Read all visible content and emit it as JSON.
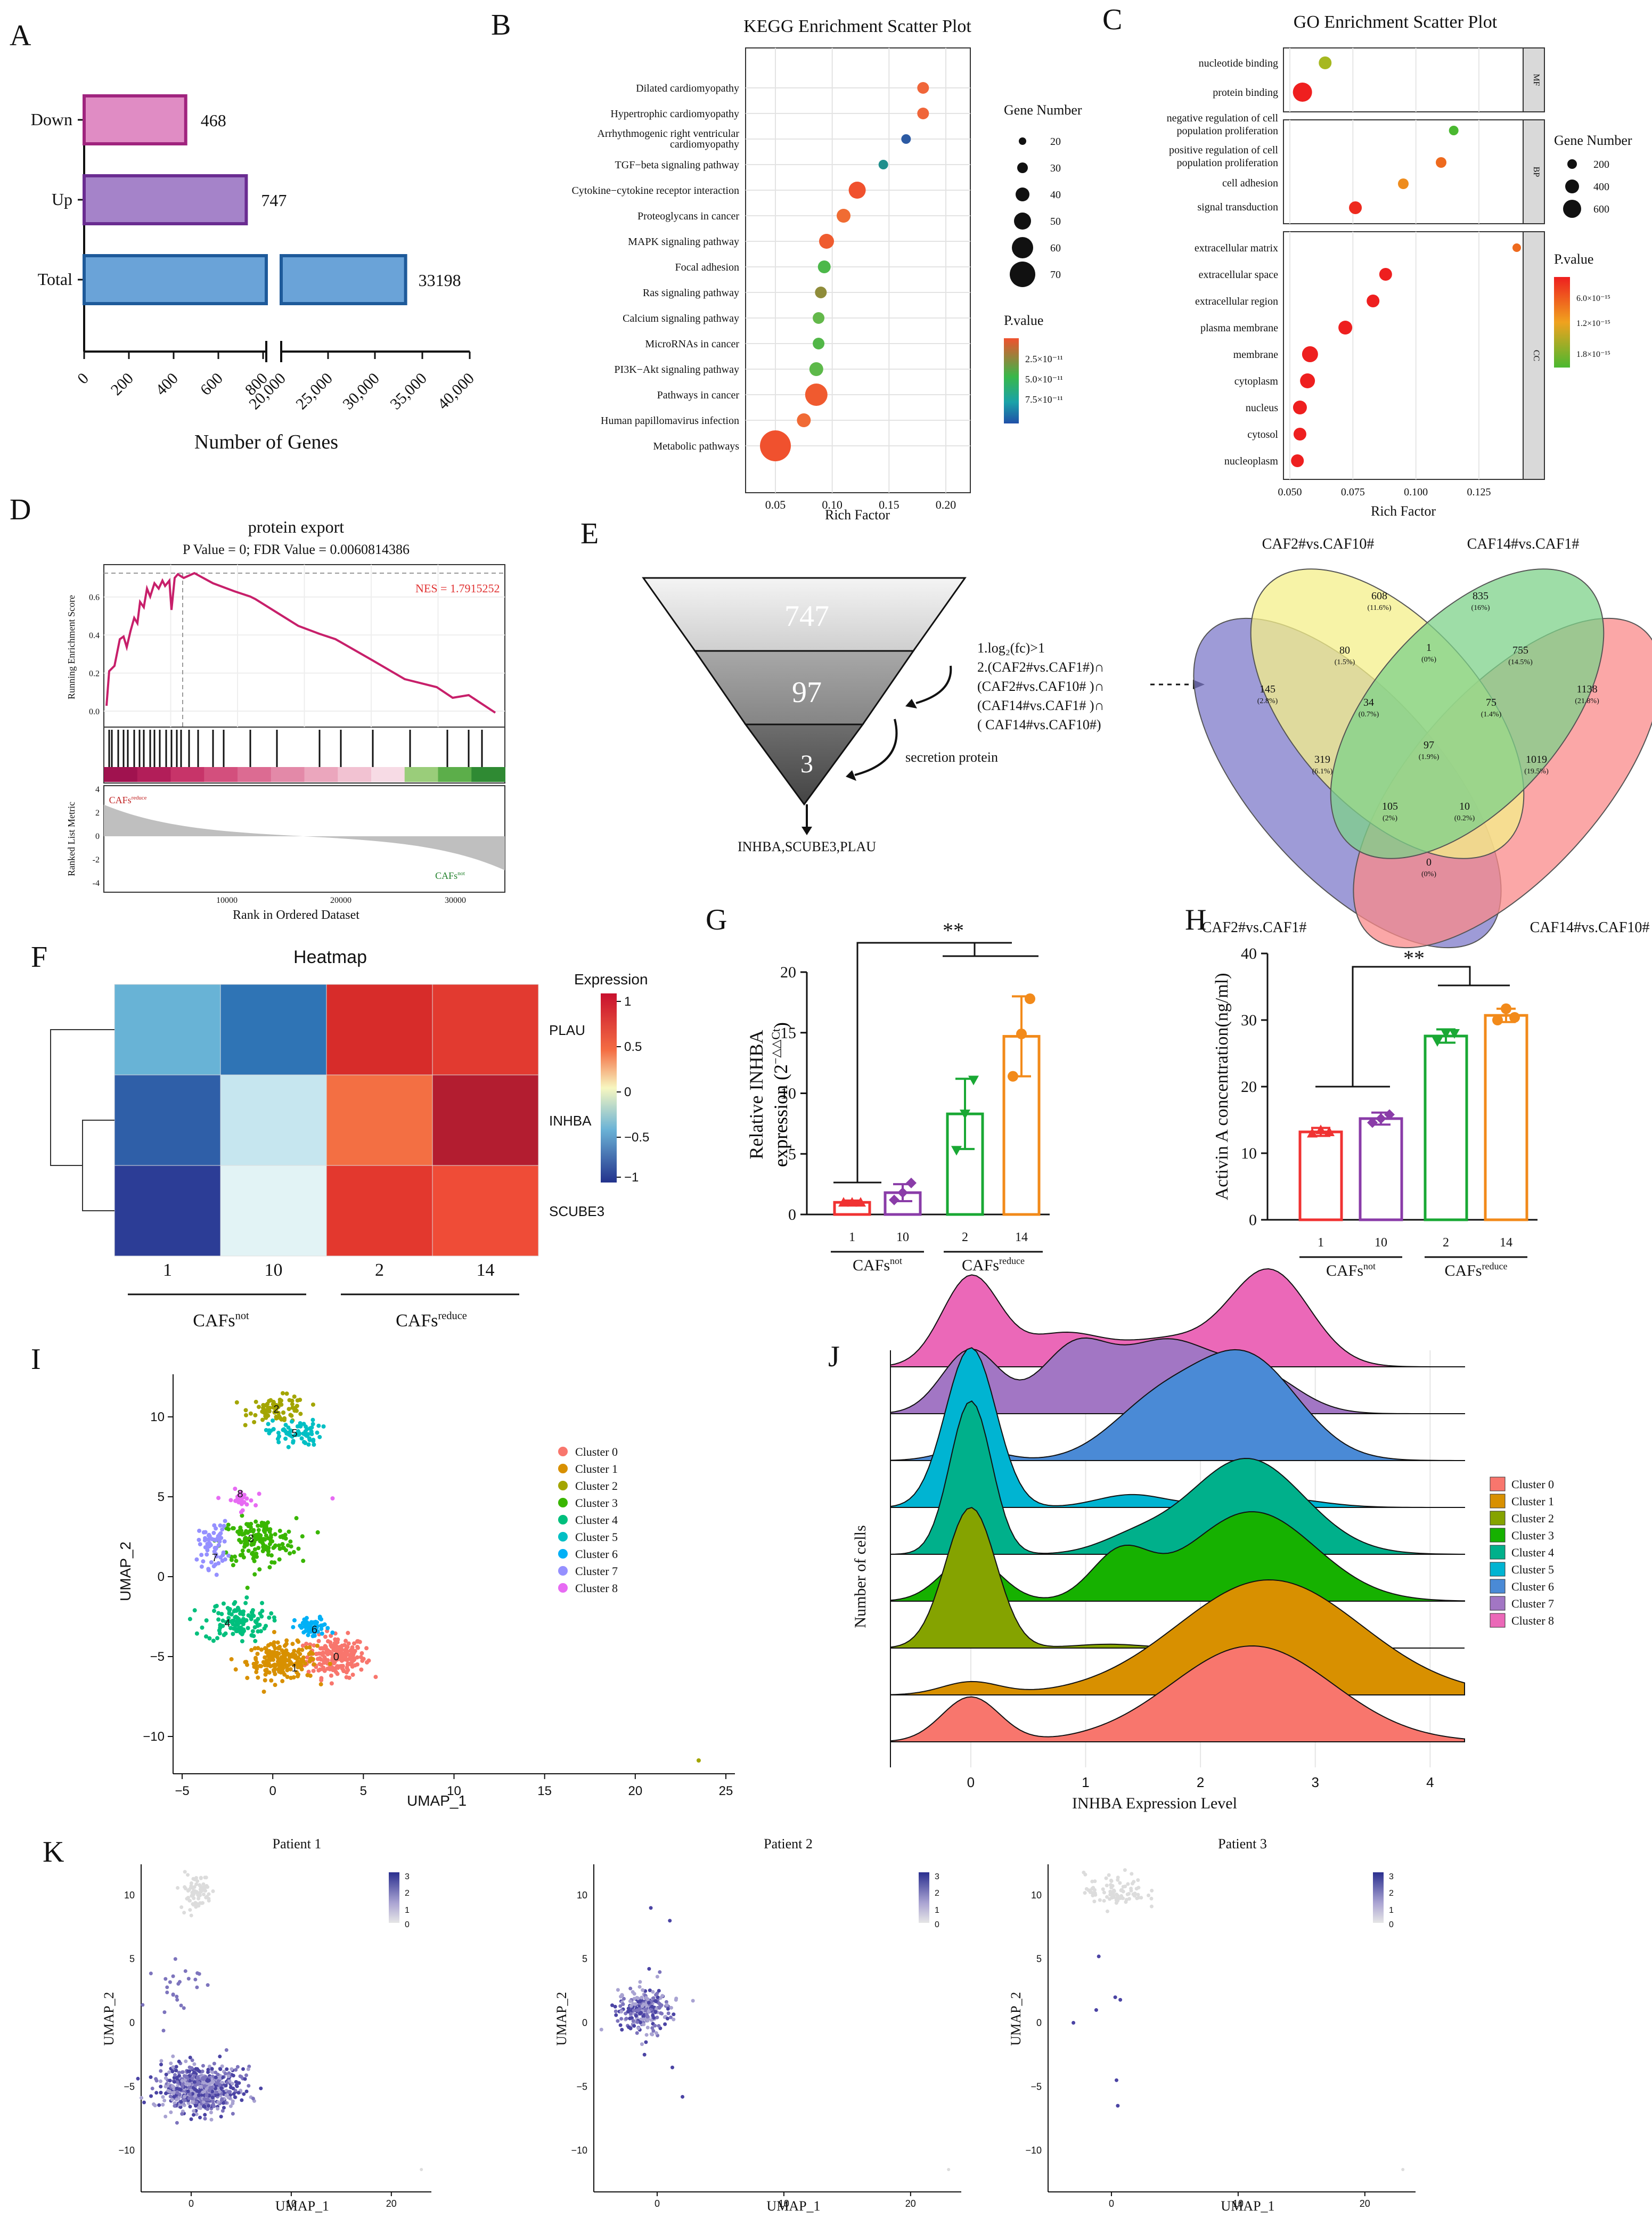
{
  "panel_labels": [
    "A",
    "B",
    "C",
    "D",
    "E",
    "F",
    "G",
    "H",
    "I",
    "J",
    "K"
  ],
  "A": {
    "categories": [
      "Down",
      "Up",
      "Total"
    ],
    "values": [
      468,
      747,
      33198
    ],
    "value_labels": [
      "468",
      "747",
      "33198"
    ],
    "colors": [
      "#e08cc4",
      "#a583c9",
      "#6aa3d8"
    ],
    "edge_colors": [
      "#a0247e",
      "#6a2c91",
      "#1e5a9a"
    ],
    "ticks": [
      "0",
      "200",
      "400",
      "600",
      "800",
      "20,000",
      "25,000",
      "30,000",
      "35,000",
      "40,000"
    ],
    "xlabel": "Number of Genes"
  },
  "B": {
    "title": "KEGG Enrichment Scatter Plot",
    "xlabel": "Rich Factor",
    "xticks": [
      "0.05",
      "0.10",
      "0.15",
      "0.20"
    ],
    "terms": [
      "Dilated cardiomyopathy",
      "Hypertrophic cardiomyopathy",
      "Arrhythmogenic right ventricular",
      "cardiomyopathy",
      "TGF−beta signaling pathway",
      "Cytokine−cytokine receptor interaction",
      "Proteoglycans in cancer",
      "MAPK signaling pathway",
      "Focal adhesion",
      "Ras signaling pathway",
      "Calcium signaling pathway",
      "MicroRNAs in cancer",
      "PI3K−Akt signaling pathway",
      "Pathways in cancer",
      "Human papillomavirus infection",
      "Metabolic pathways"
    ],
    "legend_size_title": "Gene Number",
    "legend_sizes": [
      "20",
      "30",
      "40",
      "50",
      "60",
      "70"
    ],
    "legend_color_title": "P.value",
    "legend_colors": [
      "2.5×10⁻¹¹",
      "5.0×10⁻¹¹",
      "7.5×10⁻¹¹"
    ]
  },
  "C": {
    "title": "GO Enrichment Scatter Plot",
    "xlabel": "Rich Factor",
    "xticks": [
      "0.050",
      "0.075",
      "0.100",
      "0.125"
    ],
    "terms_mf": [
      "nucleotide binding",
      "protein binding"
    ],
    "terms_bp": [
      "negative regulation of cell",
      "population proliferation",
      "positive regulation of cell",
      "population proliferation",
      "cell adhesion",
      "signal transduction"
    ],
    "terms_cc": [
      "extracellular matrix",
      "extracellular space",
      "extracellular region",
      "plasma membrane",
      "membrane",
      "cytoplasm",
      "nucleus",
      "cytosol",
      "nucleoplasm"
    ],
    "strips": [
      "MF",
      "BP",
      "CC"
    ],
    "legend_size_title": "Gene Number",
    "legend_sizes": [
      "200",
      "400",
      "600"
    ],
    "legend_color_title": "P.value",
    "legend_colors": [
      "6.0×10⁻¹⁵",
      "1.2×10⁻¹⁵",
      "1.8×10⁻¹⁵"
    ]
  },
  "D": {
    "title": "protein export",
    "subtitle": "P Value = 0; FDR Value = 0.0060814386",
    "nes": "NES = 1.7915252",
    "ylabel_top": "Running Enrichment Score",
    "yticks_top": [
      "0.6",
      "0.4",
      "0.2",
      "0.0"
    ],
    "ylabel_bottom": "Ranked List Metric",
    "yticks_bottom": [
      "4",
      "2",
      "0",
      "-2",
      "-4"
    ],
    "label_reduce": "CAFs",
    "label_reduce_sup": "reduce",
    "label_not": "CAFs",
    "label_not_sup": "not",
    "xticks": [
      "10000",
      "20000",
      "30000"
    ],
    "xlabel": "Rank in Ordered Dataset"
  },
  "E": {
    "funnel": [
      "747",
      "97",
      "3"
    ],
    "criteria": [
      "1.log₂(fc)>1",
      "2.(CAF2#vs.CAF1#)∩",
      "(CAF2#vs.CAF10# )∩",
      "(CAF14#vs.CAF1# )∩",
      "( CAF14#vs.CAF10#)"
    ],
    "secretion": "secretion protein",
    "genes": "INHBA,SCUBE3,PLAU",
    "venn_labels": [
      "CAF2#vs.CAF10#",
      "CAF14#vs.CAF1#",
      "CAF2#vs.CAF1#",
      "CAF14#vs.CAF10#"
    ],
    "venn_regions": [
      {
        "n": "608",
        "p": "(11.6%)"
      },
      {
        "n": "835",
        "p": "(16%)"
      },
      {
        "n": "145",
        "p": "(2.8%)"
      },
      {
        "n": "1138",
        "p": "(21.8%)"
      },
      {
        "n": "80",
        "p": "(1.5%)"
      },
      {
        "n": "1",
        "p": "(0%)"
      },
      {
        "n": "755",
        "p": "(14.5%)"
      },
      {
        "n": "34",
        "p": "(0.7%)"
      },
      {
        "n": "75",
        "p": "(1.4%)"
      },
      {
        "n": "97",
        "p": "(1.9%)"
      },
      {
        "n": "319",
        "p": "(6.1%)"
      },
      {
        "n": "1019",
        "p": "(19.5%)"
      },
      {
        "n": "105",
        "p": "(2%)"
      },
      {
        "n": "10",
        "p": "(0.2%)"
      },
      {
        "n": "0",
        "p": "(0%)"
      }
    ]
  },
  "F": {
    "title": "Heatmap",
    "rows": [
      "PLAU",
      "INHBA",
      "SCUBE3"
    ],
    "cols": [
      "1",
      "10",
      "2",
      "14"
    ],
    "values": [
      [
        -0.55,
        -0.85,
        1.0,
        0.95
      ],
      [
        -0.9,
        -0.3,
        0.45,
        1.1
      ],
      [
        -1.05,
        -0.15,
        0.95,
        0.85
      ]
    ],
    "legend_title": "Expression",
    "legend_ticks": [
      "1",
      "0.5",
      "0",
      "−0.5",
      "−1"
    ],
    "group_not": "CAFs",
    "group_not_sup": "not",
    "group_reduce": "CAFs",
    "group_reduce_sup": "reduce"
  },
  "G": {
    "ylabel": "Relative INHBA",
    "ylabel2": "expression (2",
    "ylabel2_sup": "−△△Ct",
    "yticks": [
      "0",
      "5",
      "10",
      "15",
      "20"
    ],
    "ylim": [
      0,
      20
    ],
    "categories": [
      "1",
      "10",
      "2",
      "14"
    ],
    "values": [
      1.0,
      1.8,
      8.3,
      14.7
    ],
    "errors": [
      0.15,
      0.7,
      2.9,
      3.3
    ],
    "points": [
      [
        1.0,
        1.0,
        1.0
      ],
      [
        1.2,
        1.8,
        2.6
      ],
      [
        5.3,
        8.3,
        11.1
      ],
      [
        11.4,
        14.9,
        17.8
      ]
    ],
    "colors": [
      "#f03232",
      "#8a3ca8",
      "#19a834",
      "#f28a1a"
    ],
    "sig": "**",
    "group_not": "CAFs",
    "group_not_sup": "not",
    "group_reduce": "CAFs",
    "group_reduce_sup": "reduce"
  },
  "H": {
    "ylabel": "Activin A concentration(ng/ml)",
    "yticks": [
      "0",
      "10",
      "20",
      "30",
      "40"
    ],
    "ylim": [
      0,
      40
    ],
    "categories": [
      "1",
      "10",
      "2",
      "14"
    ],
    "values": [
      13.2,
      15.2,
      27.6,
      30.7
    ],
    "errors": [
      0.6,
      0.9,
      1.0,
      1.0
    ],
    "points": [
      [
        13.0,
        13.5,
        13.2
      ],
      [
        14.6,
        15.2,
        15.8
      ],
      [
        26.8,
        28.0,
        28.0
      ],
      [
        30.0,
        31.7,
        30.4
      ]
    ],
    "colors": [
      "#f03232",
      "#8a3ca8",
      "#19a834",
      "#f28a1a"
    ],
    "sig": "**",
    "group_not": "CAFs",
    "group_not_sup": "not",
    "group_reduce": "CAFs",
    "group_reduce_sup": "reduce"
  },
  "I": {
    "xlabel": "UMAP_1",
    "ylabel": "UMAP_2",
    "xticks": [
      "−5",
      "0",
      "5",
      "10",
      "15",
      "20",
      "25"
    ],
    "yticks": [
      "10",
      "5",
      "0",
      "−5",
      "−10"
    ],
    "clusters": [
      "Cluster 0",
      "Cluster 1",
      "Cluster 2",
      "Cluster 3",
      "Cluster 4",
      "Cluster 5",
      "Cluster 6",
      "Cluster 7",
      "Cluster 8"
    ],
    "colors": [
      "#f8766d",
      "#d89000",
      "#a3a500",
      "#39b600",
      "#00bf7d",
      "#00bfc4",
      "#00b0f6",
      "#9590ff",
      "#e76bf3"
    ],
    "cluster_numbers": [
      "0",
      "1",
      "2",
      "3",
      "4",
      "5",
      "6",
      "7",
      "8"
    ]
  },
  "J": {
    "xlabel": "INHBA Expression Level",
    "ylabel": "Number of cells",
    "xticks": [
      "0",
      "1",
      "2",
      "3",
      "4"
    ],
    "clusters": [
      "Cluster 0",
      "Cluster 1",
      "Cluster 2",
      "Cluster 3",
      "Cluster 4",
      "Cluster 5",
      "Cluster 6",
      "Cluster 7",
      "Cluster 8"
    ],
    "colors": [
      "#f8766d",
      "#d89000",
      "#85a300",
      "#16b100",
      "#00b08b",
      "#00b4d2",
      "#4a8ad6",
      "#a276c4",
      "#eb68b8"
    ]
  },
  "K": {
    "titles": [
      "Patient 1",
      "Patient 2",
      "Patient 3"
    ],
    "xlabel": "UMAP_1",
    "ylabel": "UMAP_2",
    "xticks": [
      "0",
      "10",
      "20"
    ],
    "yticks": [
      "10",
      "5",
      "0",
      "−5",
      "−10"
    ],
    "legend_ticks": [
      "3",
      "2",
      "1",
      "0"
    ]
  }
}
